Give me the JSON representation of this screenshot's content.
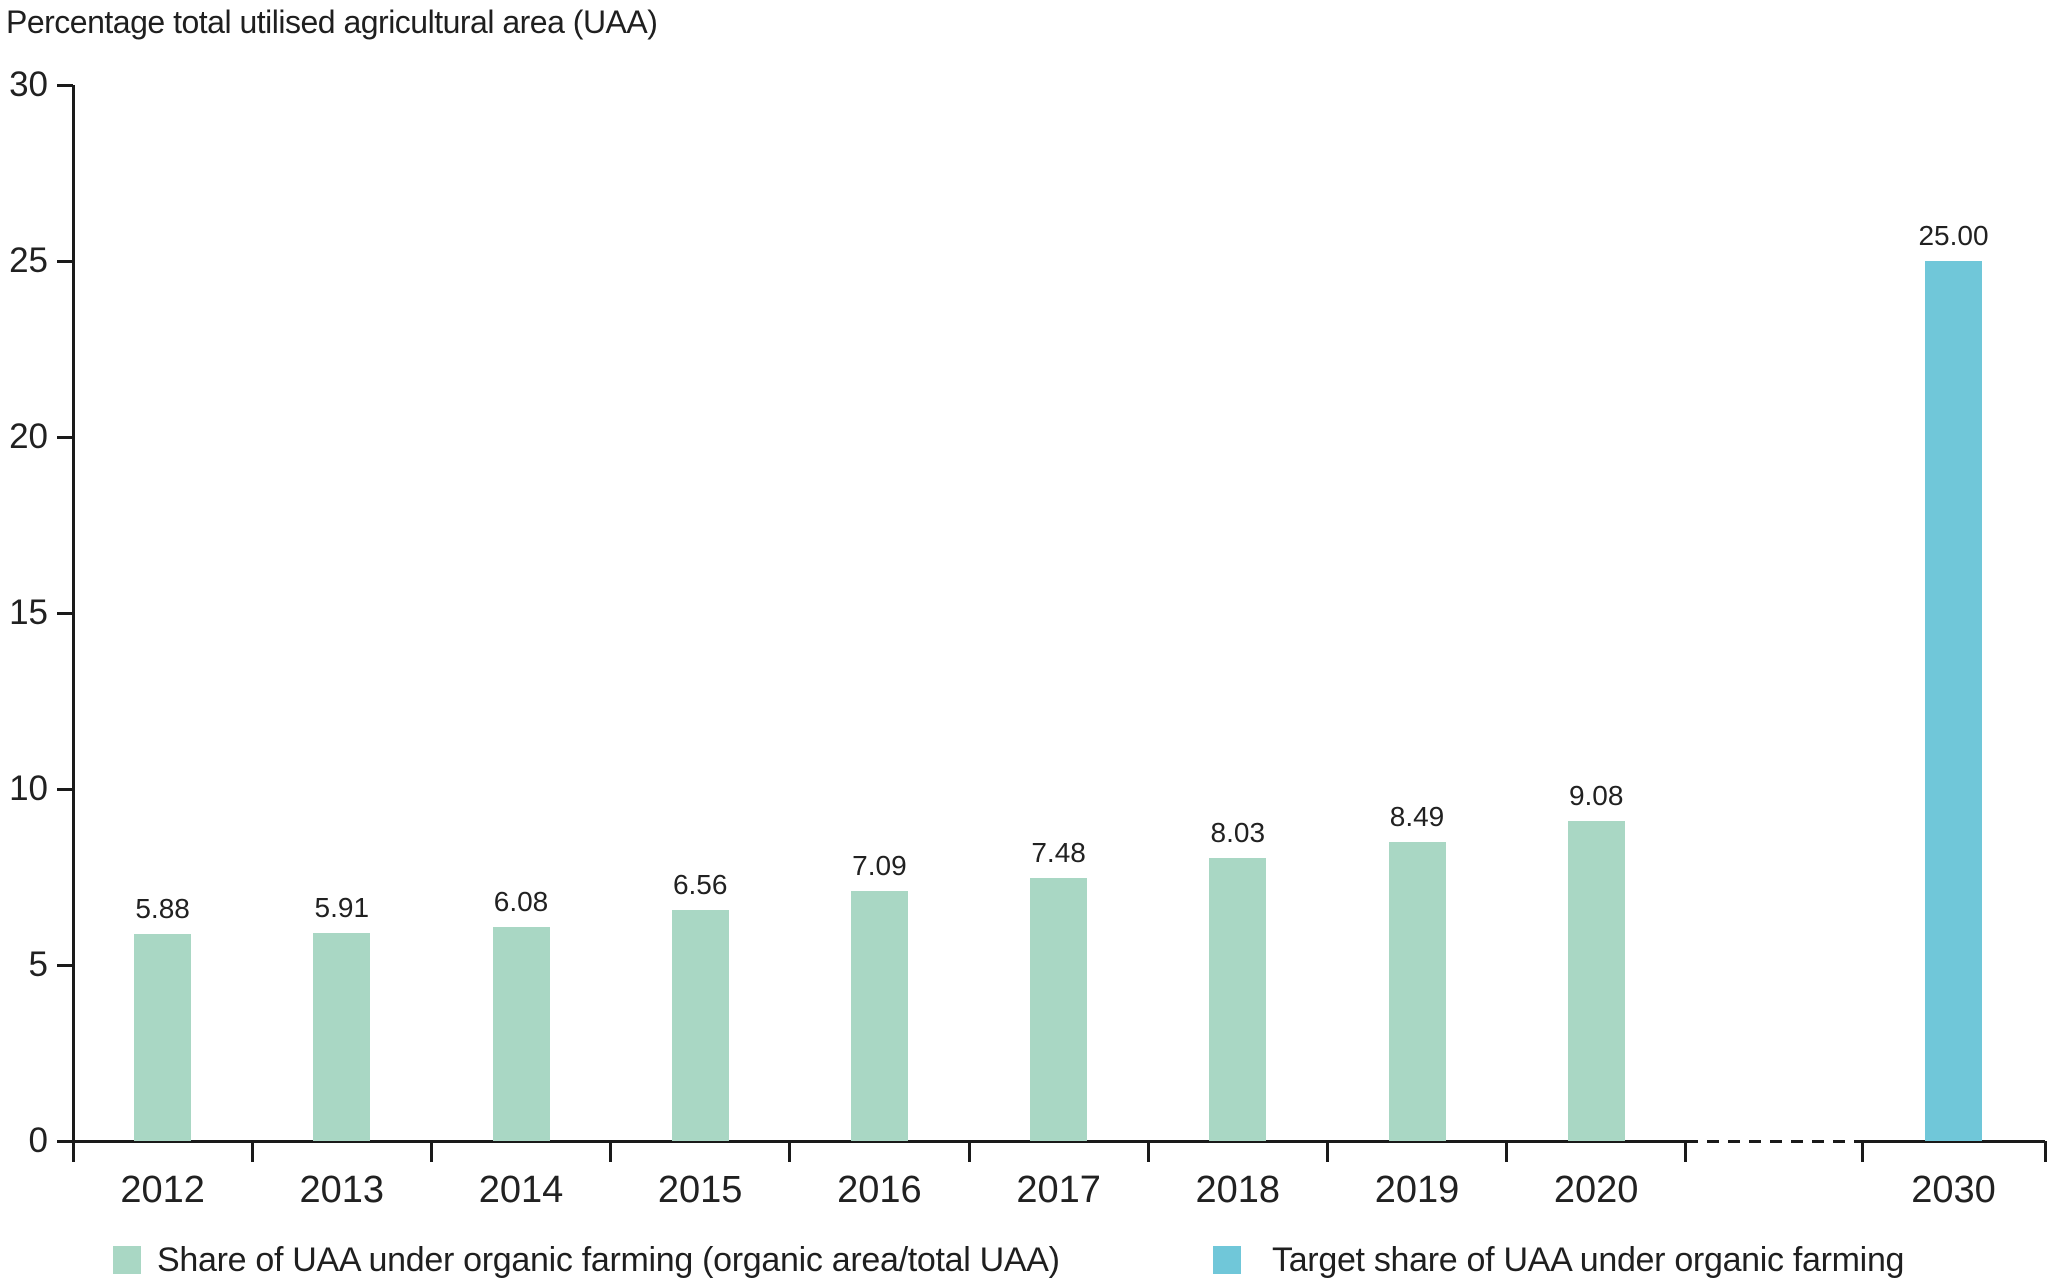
{
  "title": "Percentage total utilised agricultural area (UAA)",
  "chart_data": {
    "type": "bar",
    "title": "Percentage total utilised agricultural area (UAA)",
    "ylabel": "Percentage total utilised agricultural area (UAA)",
    "xlabel": "",
    "categories": [
      "2012",
      "2013",
      "2014",
      "2015",
      "2016",
      "2017",
      "2018",
      "2019",
      "2020",
      "2030"
    ],
    "series": [
      {
        "name": "Share of UAA under organic farming (organic area/total UAA)",
        "color": "#a9d7c4",
        "values": [
          5.88,
          5.91,
          6.08,
          6.56,
          7.09,
          7.48,
          8.03,
          8.49,
          9.08,
          null
        ],
        "labels": [
          "5.88",
          "5.91",
          "6.08",
          "6.56",
          "7.09",
          "7.48",
          "8.03",
          "8.49",
          "9.08",
          null
        ]
      },
      {
        "name": "Target share of UAA under organic farming",
        "color": "#70c7d9",
        "values": [
          null,
          null,
          null,
          null,
          null,
          null,
          null,
          null,
          null,
          25.0
        ],
        "labels": [
          null,
          null,
          null,
          null,
          null,
          null,
          null,
          null,
          null,
          "25.00"
        ]
      }
    ],
    "ylim": [
      0,
      30
    ],
    "yticks": [
      0,
      5,
      10,
      15,
      20,
      25,
      30
    ],
    "grid": false,
    "legend_position": "bottom",
    "axis_break": {
      "after_category": "2020",
      "before_category": "2030",
      "style": "dashed-x-axis-segment"
    }
  },
  "colors": {
    "organic_bar": "#a9d7c4",
    "target_bar": "#70c7d9",
    "axis": "#1a1a1a",
    "text": "#212121",
    "background": "#ffffff"
  },
  "legend": {
    "items": [
      {
        "label": "Share of UAA under organic farming (organic area/total UAA)",
        "color": "#a9d7c4"
      },
      {
        "label": "Target share of UAA under organic farming",
        "color": "#70c7d9"
      }
    ]
  }
}
